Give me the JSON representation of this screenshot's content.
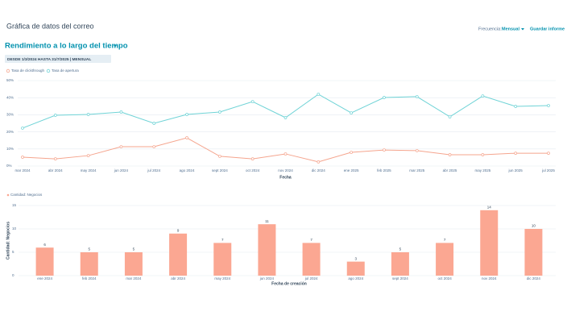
{
  "header": {
    "title": "Gráfica de datos del correo",
    "frequency_label": "Frecuencia:",
    "frequency_value": "Mensual",
    "save_button": "Guardar informe",
    "report_title": "Rendimiento a lo largo del tiempo",
    "date_range": "DESDE 1/3/2024 HASTA 31/7/2025 | MENSUAL"
  },
  "chart_data": [
    {
      "type": "line",
      "x_label": "Fecha",
      "categories": [
        "mar 2024",
        "abr 2024",
        "may 2024",
        "jun 2024",
        "jul 2024",
        "ago 2024",
        "sept 2024",
        "oct 2024",
        "nov 2024",
        "dic 2024",
        "ene 2025",
        "feb 2025",
        "mar 2025",
        "abr 2025",
        "may 2025",
        "jun 2025",
        "jul 2025"
      ],
      "series": [
        {
          "name": "Tasa de clickthrough",
          "color": "#f5a58e",
          "values": [
            5.2,
            4.2,
            6.1,
            11.3,
            11.3,
            16.5,
            5.7,
            4.2,
            7.1,
            2.4,
            8.0,
            9.4,
            9.0,
            6.6,
            6.6,
            7.5,
            7.5
          ]
        },
        {
          "name": "Tasa de apertura",
          "color": "#6fd3d6",
          "values": [
            22.2,
            29.7,
            30.2,
            31.6,
            25.0,
            30.2,
            31.6,
            37.7,
            28.3,
            42.0,
            31.1,
            40.1,
            40.6,
            28.8,
            41.0,
            34.9,
            35.4
          ]
        }
      ],
      "ylim": [
        0,
        50
      ],
      "yticks": [
        {
          "value": 0,
          "label": "0%"
        },
        {
          "value": 10,
          "label": "10%"
        },
        {
          "value": 20,
          "label": "20%"
        },
        {
          "value": 30,
          "label": "30%"
        },
        {
          "value": 40,
          "label": "40%"
        },
        {
          "value": 50,
          "label": "50%"
        }
      ],
      "grid": true
    },
    {
      "type": "bar",
      "x_label": "Fecha de creación",
      "y_label": "Cantidad: Negocios",
      "categories": [
        "ene 2024",
        "feb 2024",
        "mar 2024",
        "abr 2024",
        "may 2024",
        "jun 2024",
        "jul 2024",
        "ago 2024",
        "sept 2024",
        "oct 2024",
        "nov 2024",
        "dic 2024"
      ],
      "series": [
        {
          "name": "Cantidad: Negocios",
          "color": "#fba792",
          "values": [
            6,
            5,
            5,
            9,
            7,
            11,
            7,
            3,
            5,
            7,
            14,
            10
          ]
        }
      ],
      "ylim": [
        0,
        15
      ],
      "yticks": [
        0,
        5,
        10,
        15
      ],
      "grid": true
    }
  ]
}
